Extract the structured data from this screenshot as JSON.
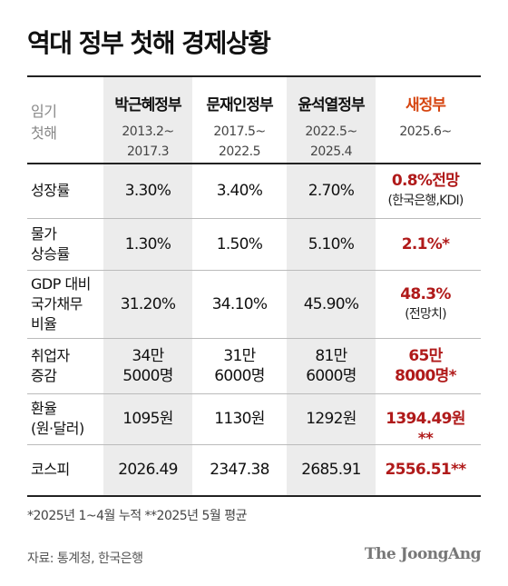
{
  "title": "역대 정부 첫해 경제상황",
  "period_label": "임기\n첫해",
  "governments": [
    {
      "name": "박근혜정부",
      "period": "2013.2~\n2017.3"
    },
    {
      "name": "문재인정부",
      "period": "2017.5~\n2022.5"
    },
    {
      "name": "윤석열정부",
      "period": "2022.5~\n2025.4"
    },
    {
      "name": "새정부",
      "period": "2025.6~"
    }
  ],
  "chart_data": {
    "type": "table",
    "columns": [
      "박근혜정부",
      "문재인정부",
      "윤석열정부",
      "새정부"
    ],
    "rows": [
      {
        "label": "성장률",
        "values": [
          "3.30%",
          "3.40%",
          "2.70%",
          "0.8%전망"
        ],
        "new_sub": "(한국은행,KDI)"
      },
      {
        "label": "물가\n상승률",
        "values": [
          "1.30%",
          "1.50%",
          "5.10%",
          "2.1%*"
        ],
        "new_sub": ""
      },
      {
        "label": "GDP 대비\n국가채무\n비율",
        "values": [
          "31.20%",
          "34.10%",
          "45.90%",
          "48.3%"
        ],
        "new_sub": "(전망치)"
      },
      {
        "label": "취업자\n증감",
        "values": [
          "34만\n5000명",
          "31만\n6000명",
          "81만\n6000명",
          "65만\n8000명*"
        ],
        "new_sub": ""
      },
      {
        "label": "환율\n(원·달러)",
        "values": [
          "1095원",
          "1130원",
          "1292원",
          "1394.49원**"
        ],
        "new_sub": ""
      },
      {
        "label": "코스피",
        "values": [
          "2026.49",
          "2347.38",
          "2685.91",
          "2556.51**"
        ],
        "new_sub": ""
      }
    ]
  },
  "note": "*2025년 1~4월 누적   **2025년 5월 평균",
  "source": "자료: 통계청, 한국은행",
  "brand": "The JoongAng",
  "colors": {
    "new_government_header": "#d64510",
    "new_government_values": "#b01a1a",
    "shaded_column": "#ececec"
  }
}
